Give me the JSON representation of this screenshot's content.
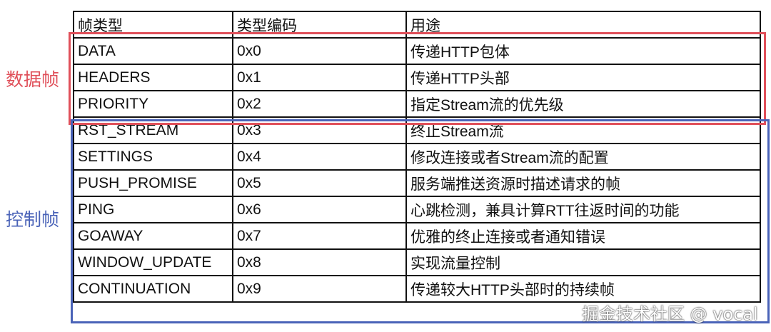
{
  "header": [
    "帧类型",
    "类型编码",
    "用途"
  ],
  "rows": [
    [
      "DATA",
      "0x0",
      "传递HTTP包体"
    ],
    [
      "HEADERS",
      "0x1",
      "传递HTTP头部"
    ],
    [
      "PRIORITY",
      "0x2",
      "指定Stream流的优先级"
    ],
    [
      "RST_STREAM",
      "0x3",
      "终止Stream流"
    ],
    [
      "SETTINGS",
      "0x4",
      "修改连接或者Stream流的配置"
    ],
    [
      "PUSH_PROMISE",
      "0x5",
      "服务端推送资源时描述请求的帧"
    ],
    [
      "PING",
      "0x6",
      "心跳检测，兼具计算RTT往返时间的功能"
    ],
    [
      "GOAWAY",
      "0x7",
      "优雅的终止连接或者通知错误"
    ],
    [
      "WINDOW_UPDATE",
      "0x8",
      "实现流量控制"
    ],
    [
      "CONTINUATION",
      "0x9",
      "传递较大HTTP头部时的持续帧"
    ]
  ],
  "groups": {
    "data_frames": "数据帧",
    "control_frames": "控制帧"
  },
  "colors": {
    "data_group": "#e0505a",
    "control_group": "#4a63b8"
  },
  "watermark": "掘金技术社区 @ vocal"
}
